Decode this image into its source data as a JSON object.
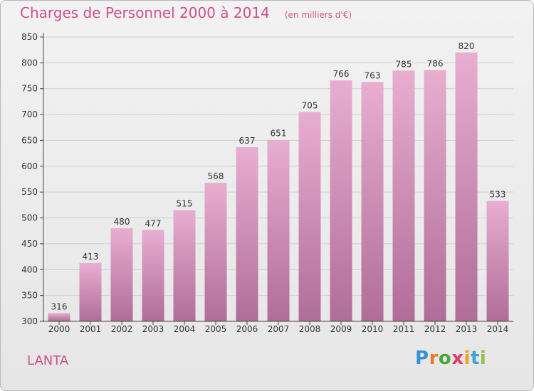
{
  "header": {
    "title": "Charges de Personnel 2000 à 2014",
    "unit": "(en milliers d'€)"
  },
  "footer": {
    "commune": "LANTA",
    "brand_letters": [
      "P",
      "r",
      "o",
      "x",
      "i",
      "t",
      "i"
    ],
    "brand_colors": [
      "#2f93d6",
      "#e87b28",
      "#48a83c",
      "#e23b6a",
      "#f0a21f",
      "#3ba5d9",
      "#8cc43f"
    ]
  },
  "colors": {
    "bar_top": "#e8aed0",
    "bar_bottom": "#b06d98",
    "axis": "#444444",
    "grid": "#d0d0d0",
    "title": "#d0508a"
  },
  "chart_data": {
    "type": "bar",
    "categories": [
      "2000",
      "2001",
      "2002",
      "2003",
      "2004",
      "2005",
      "2006",
      "2007",
      "2008",
      "2009",
      "2010",
      "2011",
      "2012",
      "2013",
      "2014"
    ],
    "values": [
      316,
      413,
      480,
      477,
      515,
      568,
      637,
      651,
      705,
      766,
      763,
      785,
      786,
      820,
      533
    ],
    "ylim": [
      300,
      850
    ],
    "yticks": [
      300,
      350,
      400,
      450,
      500,
      550,
      600,
      650,
      700,
      750,
      800,
      850
    ],
    "grid": true,
    "legend": "none"
  }
}
